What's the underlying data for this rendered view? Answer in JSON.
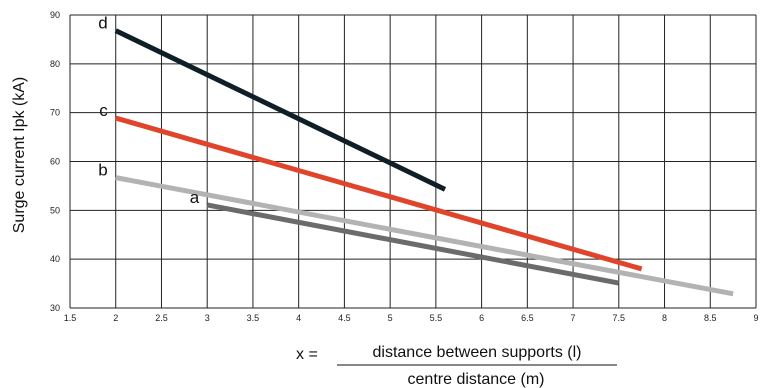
{
  "chart_data": {
    "type": "line",
    "xlim": [
      1.5,
      9
    ],
    "ylim": [
      30,
      90
    ],
    "x_ticks": [
      "1.5",
      "2",
      "2.5",
      "3",
      "3.5",
      "4",
      "4.5",
      "5",
      "5.5",
      "6",
      "6.5",
      "7",
      "7.5",
      "8",
      "8.5",
      "9"
    ],
    "y_ticks": [
      "30",
      "40",
      "50",
      "60",
      "70",
      "80",
      "90"
    ],
    "ylabel": "Surge current Ipk (kA)",
    "xlabel_prefix": "x =",
    "xlabel_numerator": "distance between supports (l)",
    "xlabel_denominator": "centre distance (m)",
    "grid": true,
    "series": [
      {
        "name": "d",
        "color": "#0f1f27",
        "x": [
          2,
          5.6
        ],
        "y": [
          86.8,
          54.3
        ]
      },
      {
        "name": "c",
        "color": "#e0452b",
        "x": [
          2,
          7.75
        ],
        "y": [
          68.9,
          38.0
        ]
      },
      {
        "name": "b",
        "color": "#b3b3b3",
        "x": [
          2,
          8.75
        ],
        "y": [
          56.7,
          32.9
        ]
      },
      {
        "name": "a",
        "color": "#6b6b6b",
        "x": [
          3,
          7.5
        ],
        "y": [
          51.1,
          35.1
        ]
      }
    ]
  }
}
